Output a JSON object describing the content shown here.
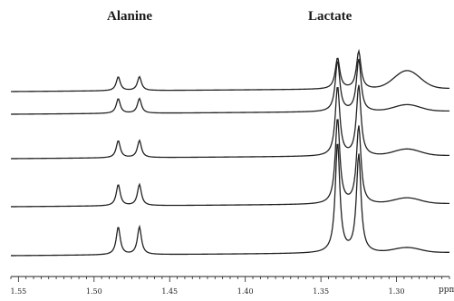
{
  "chart_data": {
    "type": "line",
    "title": "",
    "xlabel": "ppm",
    "ylabel": "",
    "x_axis": {
      "from": 1.555,
      "to": 1.265,
      "reversed": true,
      "major_step": 0.05,
      "minor_step": 0.005
    },
    "ticks": [
      {
        "value": 1.55,
        "label": "1.55"
      },
      {
        "value": 1.5,
        "label": "1.50"
      },
      {
        "value": 1.45,
        "label": "1.45"
      },
      {
        "value": 1.4,
        "label": "1.40"
      },
      {
        "value": 1.35,
        "label": "1.35"
      },
      {
        "value": 1.3,
        "label": "1.30"
      }
    ],
    "peak_labels": [
      {
        "text": "Alanine",
        "ppm": 1.477
      },
      {
        "text": "Lactate",
        "ppm": 1.332
      }
    ],
    "peak_positions_ppm": {
      "alanine_doublet": [
        1.484,
        1.47
      ],
      "lactate_doublet": [
        1.339,
        1.325
      ]
    },
    "series": [
      {
        "alanine_height": 0.17,
        "lactate_height": [
          0.38,
          0.46
        ],
        "shoulder_height": 0.22
      },
      {
        "alanine_height": 0.18,
        "lactate_height": [
          0.62,
          0.64
        ],
        "shoulder_height": 0.08
      },
      {
        "alanine_height": 0.21,
        "lactate_height": [
          0.85,
          0.86
        ],
        "shoulder_height": 0.08
      },
      {
        "alanine_height": 0.26,
        "lactate_height": [
          1.05,
          0.95
        ],
        "shoulder_height": 0.07
      },
      {
        "alanine_height": 0.34,
        "lactate_height": [
          1.35,
          1.2
        ],
        "shoulder_height": 0.06
      }
    ],
    "line_color": "#222222"
  }
}
